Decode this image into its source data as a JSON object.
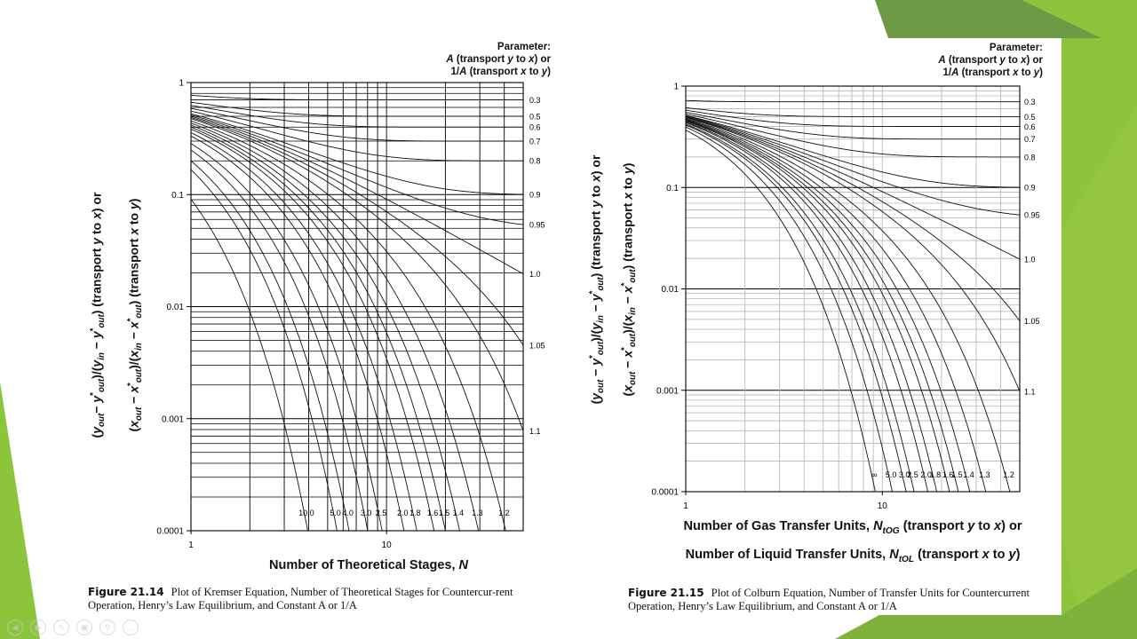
{
  "slide": {
    "colors": {
      "lime": "#8cc43c",
      "dark_green": "#6f9a45",
      "mid_green": "#7fb23a",
      "grid": "#000000",
      "minor_grid": "#b5b5b5"
    },
    "controls": [
      "prev-icon",
      "next-icon",
      "pen-icon",
      "slides-icon",
      "zoom-icon",
      "more-icon"
    ]
  },
  "chart_data": [
    {
      "type": "line",
      "equation": "Kremser",
      "x_scale": "log",
      "y_scale": "log",
      "xlim": [
        1,
        50
      ],
      "ylim": [
        0.0001,
        1
      ],
      "grid": true,
      "xlabel": [
        [
          "Number of Theoretical Stages, ",
          ""
        ],
        [
          "N",
          "i"
        ]
      ],
      "ylabel_lines": [
        [
          [
            "(",
            ""
          ],
          [
            "y",
            "i"
          ],
          [
            "out",
            "isub"
          ],
          [
            "− ",
            ""
          ],
          [
            "y",
            "i"
          ],
          [
            "*",
            "sup"
          ],
          [
            "out",
            "isub"
          ],
          [
            ")/(",
            ""
          ],
          [
            "y",
            "i"
          ],
          [
            "in",
            "isub"
          ],
          [
            " − ",
            ""
          ],
          [
            "y",
            "i"
          ],
          [
            "*",
            "sup"
          ],
          [
            "out",
            "isub"
          ],
          [
            ")  (transport ",
            ""
          ],
          [
            "y",
            "i"
          ],
          [
            " to ",
            ""
          ],
          [
            "x",
            "i"
          ],
          [
            ") or",
            ""
          ]
        ],
        [
          [
            "(",
            ""
          ],
          [
            "x",
            "i"
          ],
          [
            "out",
            "isub"
          ],
          [
            " − ",
            ""
          ],
          [
            "x",
            "i"
          ],
          [
            "*",
            "sup"
          ],
          [
            "out",
            "isub"
          ],
          [
            ")/(",
            ""
          ],
          [
            "x",
            "i"
          ],
          [
            "in",
            "isub"
          ],
          [
            " − ",
            ""
          ],
          [
            "x",
            "i"
          ],
          [
            "*",
            "sup"
          ],
          [
            "out",
            "isub"
          ],
          [
            ")  (transport ",
            ""
          ],
          [
            "x",
            "i"
          ],
          [
            " to ",
            ""
          ],
          [
            "y",
            "i"
          ],
          [
            ")",
            ""
          ]
        ]
      ],
      "x_ticks": [
        {
          "v": 1,
          "label": "1"
        },
        {
          "v": 10,
          "label": "10"
        }
      ],
      "y_ticks": [
        {
          "v": 1,
          "label": "1"
        },
        {
          "v": 0.1,
          "label": "0.1"
        },
        {
          "v": 0.01,
          "label": "0.01"
        },
        {
          "v": 0.001,
          "label": "0.001"
        },
        {
          "v": 0.0001,
          "label": "0.0001"
        }
      ],
      "legend_title": [
        [
          [
            "Parameter:",
            ""
          ]
        ],
        [
          [
            "A",
            "i"
          ],
          [
            " (transport ",
            ""
          ],
          [
            "y",
            "i"
          ],
          [
            " to ",
            ""
          ],
          [
            "x",
            "i"
          ],
          [
            ") or",
            ""
          ]
        ],
        [
          [
            "1/",
            ""
          ],
          [
            "A",
            "i"
          ],
          [
            " (transport ",
            ""
          ],
          [
            "x",
            "i"
          ],
          [
            " to ",
            ""
          ],
          [
            "y",
            "i"
          ],
          [
            ")",
            ""
          ]
        ]
      ],
      "series": [
        {
          "name": "0.3",
          "A": 0.3,
          "label_at": "right"
        },
        {
          "name": "0.5",
          "A": 0.5,
          "label_at": "right"
        },
        {
          "name": "0.6",
          "A": 0.6,
          "label_at": "right"
        },
        {
          "name": "0.7",
          "A": 0.7,
          "label_at": "right"
        },
        {
          "name": "0.8",
          "A": 0.8,
          "label_at": "right"
        },
        {
          "name": "0.9",
          "A": 0.9,
          "label_at": "right"
        },
        {
          "name": "0.95",
          "A": 0.95,
          "label_at": "right"
        },
        {
          "name": "1.0",
          "A": 1.0,
          "label_at": "right"
        },
        {
          "name": "1.05",
          "A": 1.05,
          "label_at": "right"
        },
        {
          "name": "1.1",
          "A": 1.1,
          "label_at": "right"
        },
        {
          "name": "1.2",
          "A": 1.2,
          "label_at": "bottom"
        },
        {
          "name": "1.3",
          "A": 1.3,
          "label_at": "bottom"
        },
        {
          "name": "1.4",
          "A": 1.4,
          "label_at": "bottom"
        },
        {
          "name": "1.5",
          "A": 1.5,
          "label_at": "bottom"
        },
        {
          "name": "1.6",
          "A": 1.6,
          "label_at": "bottom"
        },
        {
          "name": "1.8",
          "A": 1.8,
          "label_at": "bottom"
        },
        {
          "name": "2.0",
          "A": 2.0,
          "label_at": "bottom"
        },
        {
          "name": "2.5",
          "A": 2.5,
          "label_at": "bottom"
        },
        {
          "name": "3.0",
          "A": 3.0,
          "label_at": "bottom"
        },
        {
          "name": "4.0",
          "A": 4.0,
          "label_at": "bottom"
        },
        {
          "name": "5.0",
          "A": 5.0,
          "label_at": "bottom"
        },
        {
          "name": "10.0",
          "A": 10.0,
          "label_at": "bottom"
        }
      ],
      "caption": {
        "figure": "Figure 21.14",
        "text": "Plot of Kremser Equation, Number of Theoretical Stages for Countercur-rent Operation, Henry’s Law Equilibrium, and Constant A or 1/A"
      }
    },
    {
      "type": "line",
      "equation": "Colburn",
      "x_scale": "log",
      "y_scale": "log",
      "xlim": [
        1,
        50
      ],
      "ylim": [
        0.0001,
        1
      ],
      "grid": true,
      "xlabel_lines": [
        [
          [
            "Number of Gas Transfer Units, ",
            ""
          ],
          [
            "N",
            "i"
          ],
          [
            "tOG",
            "isub"
          ],
          [
            "  (transport ",
            ""
          ],
          [
            "y",
            "i"
          ],
          [
            " to ",
            ""
          ],
          [
            "x",
            "i"
          ],
          [
            ") or",
            ""
          ]
        ],
        [
          [
            "Number of Liquid Transfer Units, ",
            ""
          ],
          [
            "N",
            "i"
          ],
          [
            "tOL",
            "isub"
          ],
          [
            "  (transport ",
            ""
          ],
          [
            "x",
            "i"
          ],
          [
            " to ",
            ""
          ],
          [
            "y",
            "i"
          ],
          [
            ")",
            ""
          ]
        ]
      ],
      "ylabel_lines": [
        [
          [
            "(",
            ""
          ],
          [
            "y",
            "i"
          ],
          [
            "out",
            "isub"
          ],
          [
            " − ",
            ""
          ],
          [
            "y",
            "i"
          ],
          [
            "*",
            "sup"
          ],
          [
            "out",
            "isub"
          ],
          [
            ")/(",
            ""
          ],
          [
            "y",
            "i"
          ],
          [
            "in",
            "isub"
          ],
          [
            " − ",
            ""
          ],
          [
            "y",
            "i"
          ],
          [
            "*",
            "sup"
          ],
          [
            "out",
            "isub"
          ],
          [
            ")  (transport ",
            ""
          ],
          [
            "y",
            "i"
          ],
          [
            " to ",
            ""
          ],
          [
            "x",
            "i"
          ],
          [
            ") or",
            ""
          ]
        ],
        [
          [
            "(",
            ""
          ],
          [
            "x",
            "i"
          ],
          [
            "out",
            "isub"
          ],
          [
            " − ",
            ""
          ],
          [
            "x",
            "i"
          ],
          [
            "*",
            "sup"
          ],
          [
            "out",
            "isub"
          ],
          [
            ")/(",
            ""
          ],
          [
            "x",
            "i"
          ],
          [
            "in",
            "isub"
          ],
          [
            " − ",
            ""
          ],
          [
            "x",
            "i"
          ],
          [
            "*",
            "sup"
          ],
          [
            "out",
            "isub"
          ],
          [
            ")  (transport ",
            ""
          ],
          [
            "x",
            "i"
          ],
          [
            " to ",
            ""
          ],
          [
            "y",
            "i"
          ],
          [
            ")",
            ""
          ]
        ]
      ],
      "x_ticks": [
        {
          "v": 1,
          "label": "1"
        },
        {
          "v": 10,
          "label": "10"
        }
      ],
      "y_ticks": [
        {
          "v": 1,
          "label": "1"
        },
        {
          "v": 0.1,
          "label": "0.1"
        },
        {
          "v": 0.01,
          "label": "0.01"
        },
        {
          "v": 0.001,
          "label": "0.001"
        },
        {
          "v": 0.0001,
          "label": "0.0001"
        }
      ],
      "legend_title": [
        [
          [
            "Parameter:",
            ""
          ]
        ],
        [
          [
            "A",
            "i"
          ],
          [
            " (transport ",
            ""
          ],
          [
            "y",
            "i"
          ],
          [
            " to ",
            ""
          ],
          [
            "x",
            "i"
          ],
          [
            ") or",
            ""
          ]
        ],
        [
          [
            "1/",
            ""
          ],
          [
            "A",
            "i"
          ],
          [
            " (transport ",
            ""
          ],
          [
            "x",
            "i"
          ],
          [
            " to ",
            ""
          ],
          [
            "y",
            "i"
          ],
          [
            ")",
            ""
          ]
        ]
      ],
      "series": [
        {
          "name": "0.3",
          "A": 0.3,
          "label_at": "right"
        },
        {
          "name": "0.5",
          "A": 0.5,
          "label_at": "right"
        },
        {
          "name": "0.6",
          "A": 0.6,
          "label_at": "right"
        },
        {
          "name": "0.7",
          "A": 0.7,
          "label_at": "right"
        },
        {
          "name": "0.8",
          "A": 0.8,
          "label_at": "right"
        },
        {
          "name": "0.9",
          "A": 0.9,
          "label_at": "right"
        },
        {
          "name": "0.95",
          "A": 0.95,
          "label_at": "right"
        },
        {
          "name": "1.0",
          "A": 1.0,
          "label_at": "right"
        },
        {
          "name": "1.05",
          "A": 1.05,
          "label_at": "right"
        },
        {
          "name": "1.1",
          "A": 1.1,
          "label_at": "right"
        },
        {
          "name": "1.2",
          "A": 1.2,
          "label_at": "bottom"
        },
        {
          "name": "1.3",
          "A": 1.3,
          "label_at": "bottom"
        },
        {
          "name": "1.4",
          "A": 1.4,
          "label_at": "bottom"
        },
        {
          "name": "1.5",
          "A": 1.5,
          "label_at": "bottom"
        },
        {
          "name": "1.6",
          "A": 1.6,
          "label_at": "bottom"
        },
        {
          "name": "1.8",
          "A": 1.8,
          "label_at": "bottom"
        },
        {
          "name": "2.0",
          "A": 2.0,
          "label_at": "bottom"
        },
        {
          "name": "2.5",
          "A": 2.5,
          "label_at": "bottom"
        },
        {
          "name": "3.0",
          "A": 3.0,
          "label_at": "bottom"
        },
        {
          "name": "5.0",
          "A": 5.0,
          "label_at": "bottom"
        },
        {
          "name": "∞",
          "A": "inf",
          "label_at": "bottom"
        }
      ],
      "caption": {
        "figure": "Figure 21.15",
        "text": "Plot of Colburn Equation, Number of Transfer Units for Countercurrent Operation, Henry’s Law Equilibrium, and Constant A or 1/A"
      }
    }
  ]
}
